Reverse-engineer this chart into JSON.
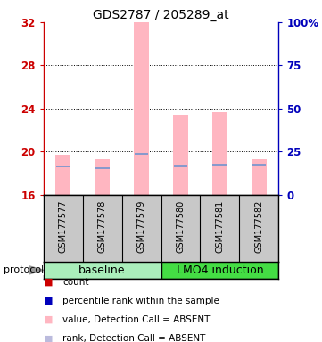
{
  "title": "GDS2787 / 205289_at",
  "samples": [
    "GSM177577",
    "GSM177578",
    "GSM177579",
    "GSM177580",
    "GSM177581",
    "GSM177582"
  ],
  "bar_top_values": [
    19.7,
    19.3,
    32.0,
    23.4,
    23.7,
    19.3
  ],
  "bar_bottom": 16,
  "blue_marker_values": [
    18.6,
    18.5,
    19.8,
    18.7,
    18.8,
    18.8
  ],
  "ylim_left": [
    16,
    32
  ],
  "yticks_left": [
    16,
    20,
    24,
    28,
    32
  ],
  "ylim_right": [
    0,
    100
  ],
  "yticks_right": [
    0,
    25,
    50,
    75,
    100
  ],
  "ytick_labels_right": [
    "0",
    "25",
    "50",
    "75",
    "100%"
  ],
  "bar_color": "#FFB6C1",
  "blue_color": "#8899CC",
  "left_axis_color": "#CC0000",
  "right_axis_color": "#0000BB",
  "group_baseline_color": "#AAEEBB",
  "group_lmo4_color": "#44DD44",
  "sample_box_color": "#C8C8C8",
  "legend_colors": [
    "#CC0000",
    "#0000BB",
    "#FFB6C1",
    "#BBBBDD"
  ],
  "legend_labels": [
    "count",
    "percentile rank within the sample",
    "value, Detection Call = ABSENT",
    "rank, Detection Call = ABSENT"
  ],
  "protocol_label": "protocol",
  "background_color": "#FFFFFF"
}
